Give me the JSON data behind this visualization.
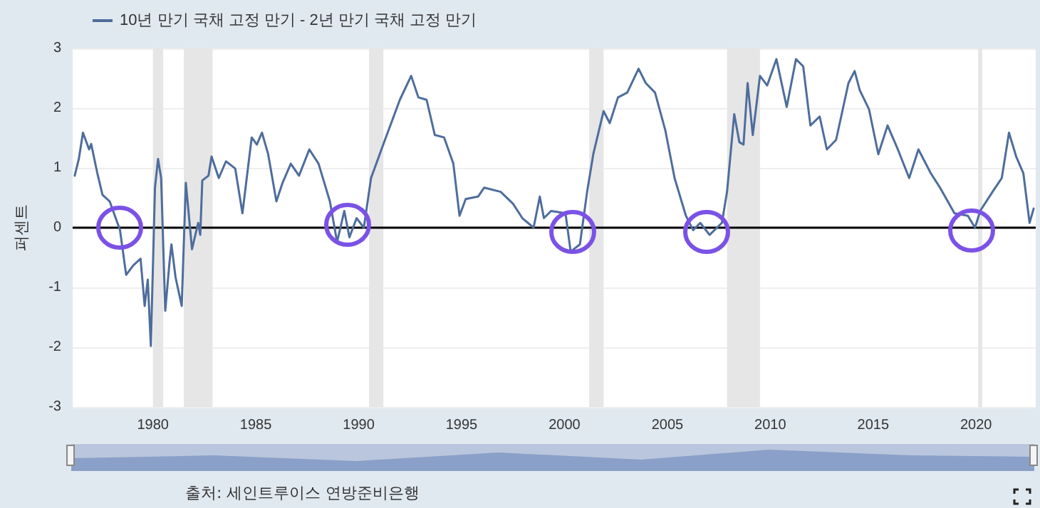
{
  "chart_data": {
    "type": "line",
    "ylabel": "퍼센트",
    "annotations": [
      "출처: 세인트루이스 연방준비은행"
    ],
    "legend": "top left",
    "grid": "y",
    "marker": "none",
    "line_style": "solid",
    "xlim": [
      1976.1,
      2022.9
    ],
    "xticks": [
      1980,
      1985,
      1990,
      1995,
      2000,
      2005,
      2010,
      2015,
      2020
    ],
    "ylim": [
      -3,
      3
    ],
    "yticks": [
      -3,
      -2,
      -1,
      0,
      1,
      2,
      3
    ],
    "ref_lines": [
      {
        "axis": "y",
        "value": 0,
        "color": "#000000"
      }
    ],
    "bands": [
      {
        "axis": "x",
        "from": 1980.0,
        "to": 1980.5,
        "color": "#e6e6e6"
      },
      {
        "axis": "x",
        "from": 1981.5,
        "to": 1982.9,
        "color": "#e6e6e6"
      },
      {
        "axis": "x",
        "from": 1990.5,
        "to": 1991.2,
        "color": "#e6e6e6"
      },
      {
        "axis": "x",
        "from": 2001.2,
        "to": 2001.9,
        "color": "#e6e6e6"
      },
      {
        "axis": "x",
        "from": 2007.9,
        "to": 2009.5,
        "color": "#e6e6e6"
      },
      {
        "axis": "x",
        "from": 2020.1,
        "to": 2020.3,
        "color": "#e6e6e6"
      }
    ],
    "series": [
      {
        "name": "10년 만기 국채 고정 만기 - 2년 만기 국채 고정 만기",
        "color": "#4e6d9c",
        "x": [
          1976.2,
          1976.4,
          1976.6,
          1976.9,
          1977.0,
          1977.3,
          1977.55,
          1977.9,
          1978.4,
          1978.7,
          1979.05,
          1979.4,
          1979.6,
          1979.75,
          1979.9,
          1980.1,
          1980.25,
          1980.4,
          1980.6,
          1980.8,
          1980.9,
          1981.1,
          1981.4,
          1981.6,
          1981.9,
          1982.2,
          1982.3,
          1982.4,
          1982.7,
          1982.85,
          1983.2,
          1983.55,
          1984.0,
          1984.35,
          1984.8,
          1985.05,
          1985.3,
          1985.6,
          1986.0,
          1986.3,
          1986.7,
          1987.1,
          1987.6,
          1988.05,
          1988.6,
          1988.95,
          1989.3,
          1989.55,
          1989.9,
          1990.25,
          1990.6,
          1991.15,
          1992.0,
          1992.55,
          1992.9,
          1993.3,
          1993.7,
          1994.15,
          1994.6,
          1994.9,
          1995.2,
          1995.8,
          1996.1,
          1996.9,
          1997.5,
          1997.95,
          1998.5,
          1998.8,
          1999.0,
          1999.35,
          2000.05,
          2000.3,
          2000.75,
          2001.1,
          2001.4,
          2001.9,
          2002.2,
          2002.6,
          2003.05,
          2003.6,
          2003.95,
          2004.4,
          2004.9,
          2005.35,
          2005.9,
          2006.25,
          2006.6,
          2007.05,
          2007.65,
          2007.9,
          2008.25,
          2008.5,
          2008.7,
          2008.9,
          2009.15,
          2009.5,
          2009.85,
          2010.3,
          2010.8,
          2011.25,
          2011.6,
          2011.95,
          2012.4,
          2012.75,
          2013.2,
          2013.8,
          2014.1,
          2014.35,
          2014.8,
          2015.25,
          2015.7,
          2016.2,
          2016.75,
          2017.2,
          2017.8,
          2018.25,
          2018.95,
          2019.6,
          2019.95,
          2020.2,
          2020.8,
          2021.25,
          2021.6,
          2021.95,
          2022.3,
          2022.6,
          2022.8
        ],
        "values": [
          0.87,
          1.15,
          1.59,
          1.31,
          1.4,
          0.91,
          0.55,
          0.44,
          -0.04,
          -0.79,
          -0.63,
          -0.52,
          -1.31,
          -0.87,
          -1.98,
          0.67,
          1.15,
          0.83,
          -1.39,
          -0.6,
          -0.28,
          -0.83,
          -1.31,
          0.75,
          -0.36,
          0.08,
          -0.12,
          0.79,
          0.87,
          1.19,
          0.83,
          1.11,
          0.99,
          0.24,
          1.51,
          1.39,
          1.59,
          1.23,
          0.44,
          0.75,
          1.07,
          0.87,
          1.31,
          1.07,
          0.44,
          -0.24,
          0.28,
          -0.16,
          0.16,
          0.0,
          0.83,
          1.35,
          2.14,
          2.54,
          2.18,
          2.14,
          1.55,
          1.51,
          1.07,
          0.2,
          0.48,
          0.52,
          0.67,
          0.6,
          0.4,
          0.16,
          0.0,
          0.52,
          0.16,
          0.28,
          0.24,
          -0.4,
          -0.28,
          0.6,
          1.23,
          1.95,
          1.75,
          2.18,
          2.26,
          2.66,
          2.42,
          2.26,
          1.63,
          0.83,
          0.2,
          -0.04,
          0.08,
          -0.12,
          0.08,
          0.6,
          1.9,
          1.43,
          1.39,
          2.42,
          1.55,
          2.54,
          2.38,
          2.82,
          2.02,
          2.82,
          2.7,
          1.71,
          1.86,
          1.31,
          1.47,
          2.42,
          2.62,
          2.3,
          1.98,
          1.23,
          1.71,
          1.31,
          0.83,
          1.31,
          0.91,
          0.67,
          0.24,
          0.2,
          0.0,
          0.28,
          0.6,
          0.83,
          1.59,
          1.19,
          0.91,
          0.08,
          0.32
        ]
      }
    ]
  }
}
